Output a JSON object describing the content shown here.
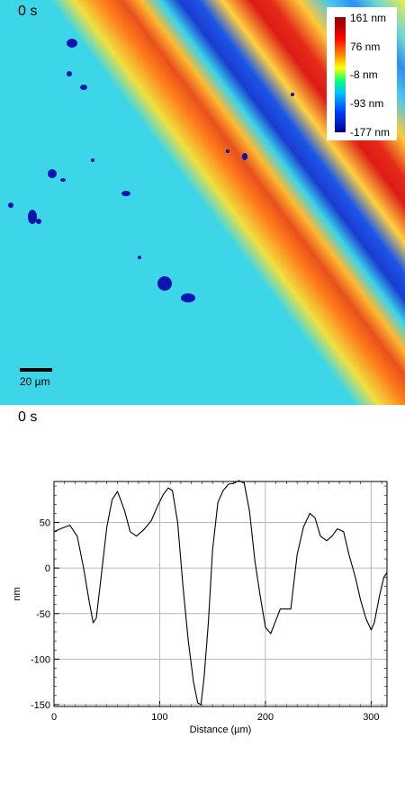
{
  "map": {
    "time_label": "0 s",
    "scale_bar_label": "20 µm",
    "colorbar_labels": [
      "161 nm",
      "76 nm",
      "-8 nm",
      "-93 nm",
      "-177 nm"
    ]
  },
  "profile": {
    "time_label": "0 s"
  },
  "chart_data": {
    "type": "line",
    "title": "",
    "xlabel": "Distance (µm)",
    "ylabel": "nm",
    "xlim": [
      0,
      315
    ],
    "ylim": [
      -152,
      95
    ],
    "grid": true,
    "xticks": [
      0,
      100,
      200,
      300
    ],
    "yticks": [
      50,
      0,
      -50,
      -100,
      -150
    ],
    "series": [
      {
        "x": [
          0,
          8,
          15,
          22,
          28,
          33,
          37,
          40,
          45,
          50,
          55,
          60,
          63,
          67,
          72,
          78,
          85,
          92,
          98,
          103,
          108,
          112,
          117,
          122,
          127,
          132,
          136,
          139,
          142,
          146,
          150,
          155,
          160,
          165,
          170,
          175,
          180,
          185,
          190,
          195,
          200,
          205,
          209,
          214,
          219,
          224,
          230,
          236,
          242,
          247,
          252,
          258,
          263,
          268,
          274,
          279,
          285,
          290,
          295,
          300,
          303,
          308,
          312,
          315
        ],
        "y": [
          40,
          44,
          47,
          35,
          0,
          -35,
          -60,
          -55,
          -5,
          45,
          75,
          84,
          75,
          62,
          40,
          35,
          42,
          52,
          68,
          80,
          88,
          85,
          50,
          -20,
          -80,
          -125,
          -148,
          -150,
          -120,
          -60,
          20,
          72,
          85,
          92,
          93,
          96,
          93,
          62,
          8,
          -30,
          -65,
          -72,
          -60,
          -45,
          -45,
          -45,
          15,
          45,
          60,
          55,
          35,
          30,
          35,
          43,
          40,
          15,
          -10,
          -35,
          -55,
          -68,
          -60,
          -30,
          -10,
          -5
        ]
      }
    ]
  }
}
